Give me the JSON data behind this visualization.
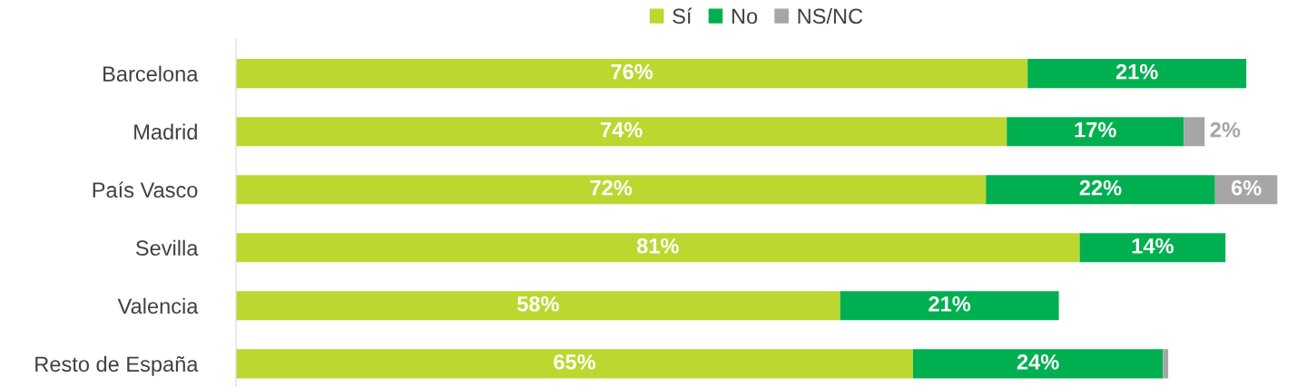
{
  "chart_data": {
    "type": "bar",
    "orientation": "horizontal",
    "stacked": true,
    "legend": "top",
    "grid": false,
    "categories": [
      "Barcelona",
      "Madrid",
      "País Vasco",
      "Sevilla",
      "Valencia",
      "Resto de España"
    ],
    "series": [
      {
        "name": "Sí",
        "color": "#bdd731",
        "values": [
          76,
          74,
          72,
          81,
          58,
          65
        ],
        "value_labels": [
          "76%",
          "74%",
          "72%",
          "81%",
          "58%",
          "65%"
        ]
      },
      {
        "name": "No",
        "color": "#00b050",
        "values": [
          21,
          17,
          22,
          14,
          21,
          24
        ],
        "value_labels": [
          "21%",
          "17%",
          "22%",
          "14%",
          "21%",
          "24%"
        ]
      },
      {
        "name": "NS/NC",
        "color": "#a6a6a6",
        "values": [
          null,
          2,
          6,
          null,
          null,
          0.5
        ],
        "value_labels": [
          null,
          "2%",
          "6%",
          null,
          null,
          null
        ]
      }
    ]
  }
}
